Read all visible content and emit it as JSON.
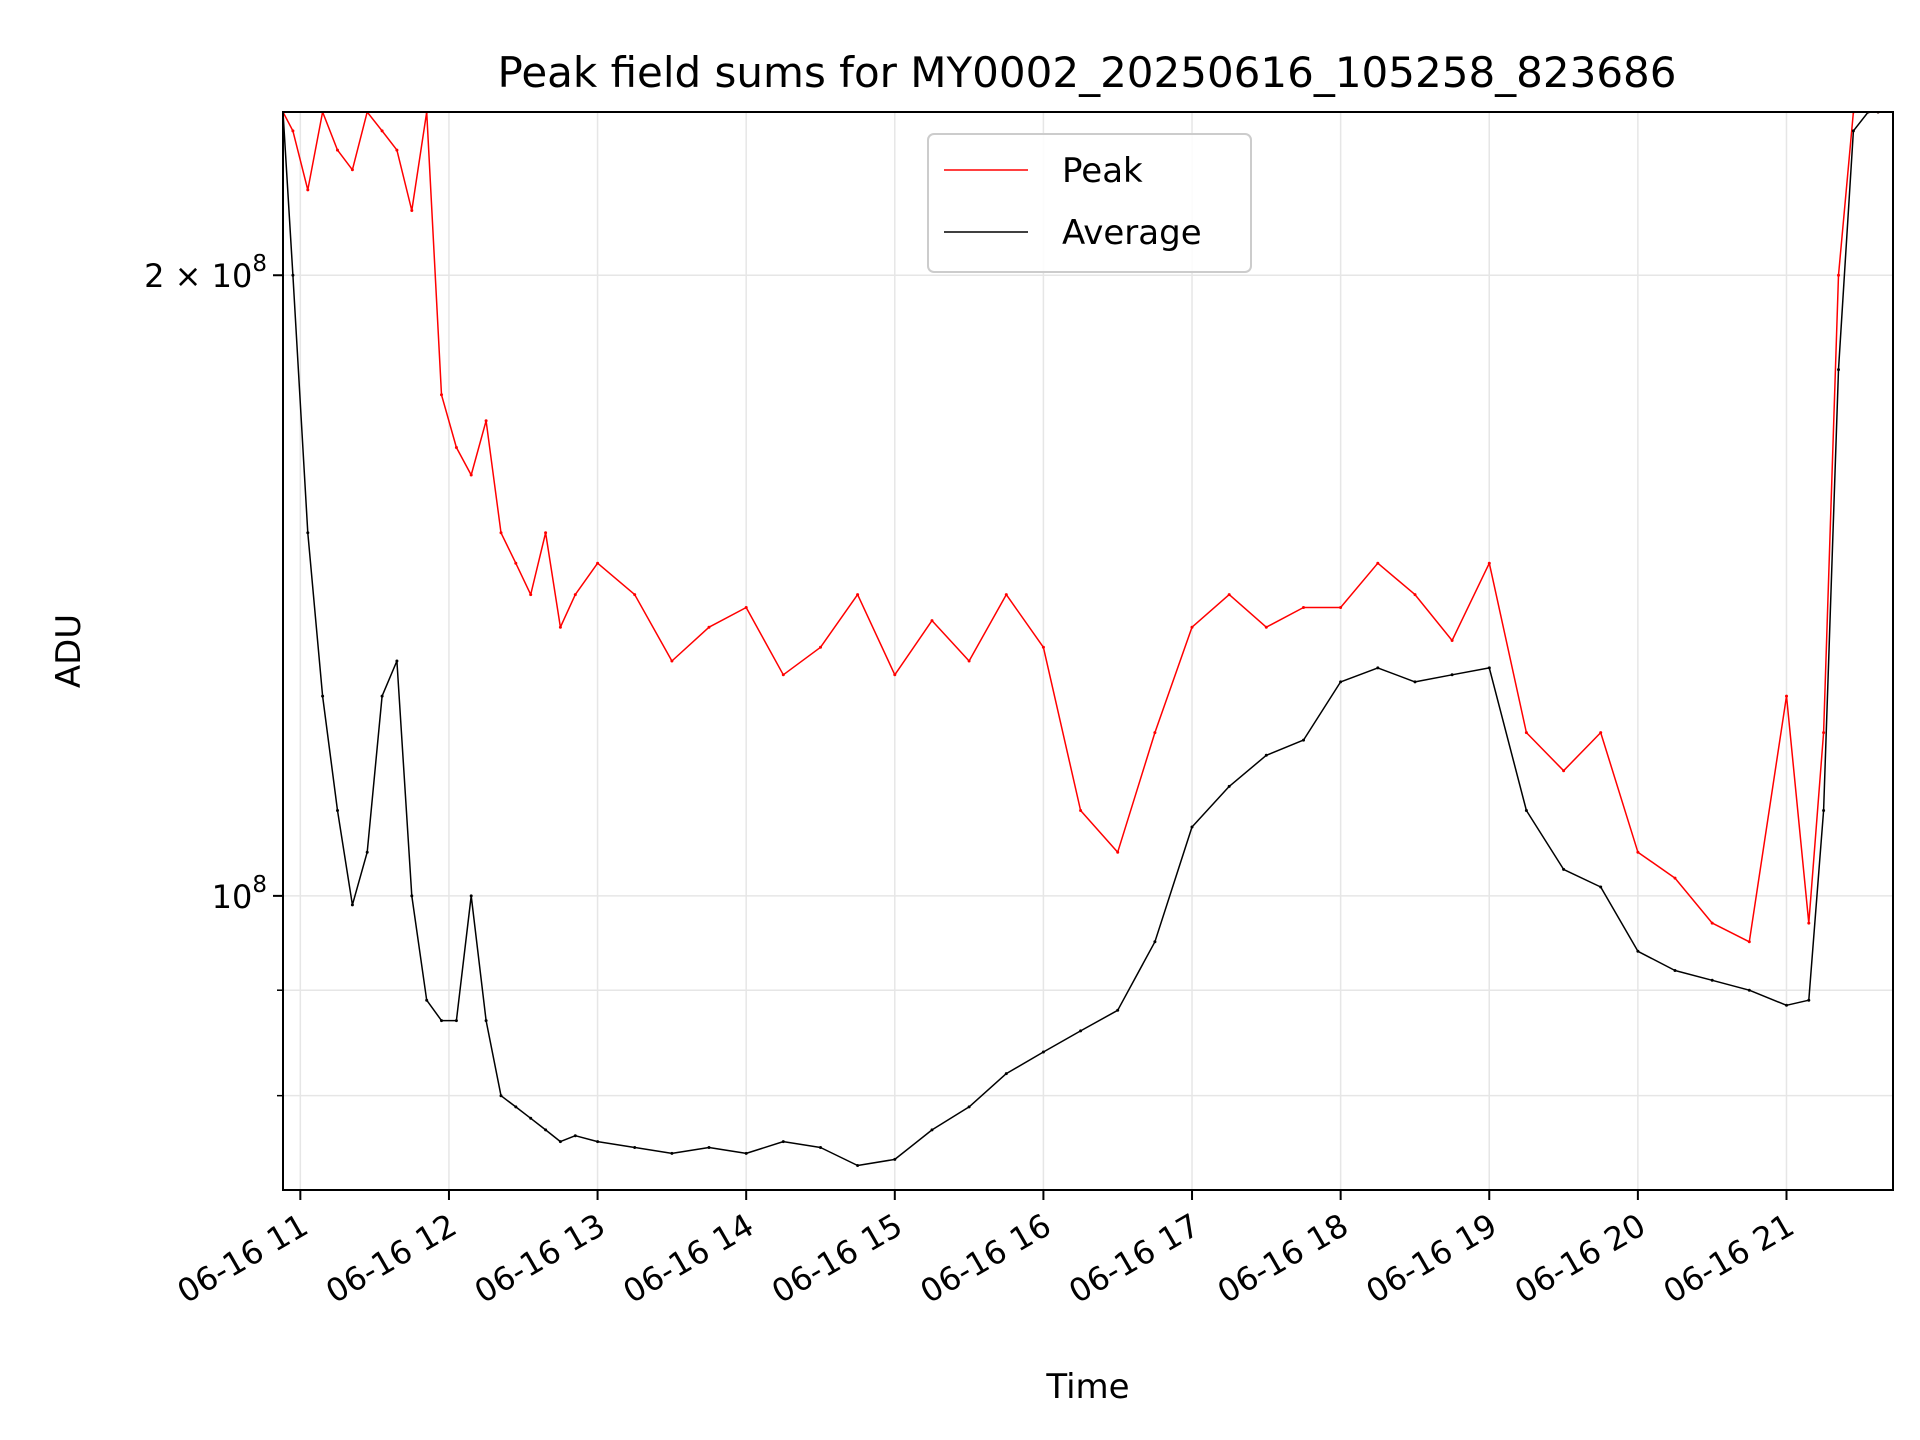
{
  "chart_data": {
    "type": "line",
    "title": "Peak field sums for MY0002_20250616_105258_823686",
    "xlabel": "Time",
    "ylabel": "ADU",
    "y_scale": "log",
    "grid": true,
    "legend_position": "top-center",
    "xlim": [
      "2025-06-16 10:53",
      "2025-06-16 21:43"
    ],
    "ylim": [
      72000000,
      240000000
    ],
    "x_ticks": [
      "2025-06-16 11:00",
      "2025-06-16 12:00",
      "2025-06-16 13:00",
      "2025-06-16 14:00",
      "2025-06-16 15:00",
      "2025-06-16 16:00",
      "2025-06-16 17:00",
      "2025-06-16 18:00",
      "2025-06-16 19:00",
      "2025-06-16 20:00",
      "2025-06-16 21:00"
    ],
    "x_tick_labels": [
      "06-16 11",
      "06-16 12",
      "06-16 13",
      "06-16 14",
      "06-16 15",
      "06-16 16",
      "06-16 17",
      "06-16 18",
      "06-16 19",
      "06-16 20",
      "06-16 21"
    ],
    "y_major_ticks": [
      100000000,
      200000000
    ],
    "y_major_tick_labels": [
      {
        "mantissa": "",
        "exponent": "8"
      },
      {
        "mantissa": "2",
        "exponent": "8"
      }
    ],
    "y_minor_ticks": [
      80000000,
      90000000
    ],
    "x": [
      "2025-06-16 10:53",
      "2025-06-16 10:57",
      "2025-06-16 11:03",
      "2025-06-16 11:09",
      "2025-06-16 11:15",
      "2025-06-16 11:21",
      "2025-06-16 11:27",
      "2025-06-16 11:33",
      "2025-06-16 11:39",
      "2025-06-16 11:45",
      "2025-06-16 11:51",
      "2025-06-16 11:57",
      "2025-06-16 12:03",
      "2025-06-16 12:09",
      "2025-06-16 12:15",
      "2025-06-16 12:21",
      "2025-06-16 12:27",
      "2025-06-16 12:33",
      "2025-06-16 12:39",
      "2025-06-16 12:45",
      "2025-06-16 12:51",
      "2025-06-16 13:00",
      "2025-06-16 13:15",
      "2025-06-16 13:30",
      "2025-06-16 13:45",
      "2025-06-16 14:00",
      "2025-06-16 14:15",
      "2025-06-16 14:30",
      "2025-06-16 14:45",
      "2025-06-16 15:00",
      "2025-06-16 15:15",
      "2025-06-16 15:30",
      "2025-06-16 15:45",
      "2025-06-16 16:00",
      "2025-06-16 16:15",
      "2025-06-16 16:30",
      "2025-06-16 16:45",
      "2025-06-16 17:00",
      "2025-06-16 17:15",
      "2025-06-16 17:30",
      "2025-06-16 17:45",
      "2025-06-16 18:00",
      "2025-06-16 18:15",
      "2025-06-16 18:30",
      "2025-06-16 18:45",
      "2025-06-16 19:00",
      "2025-06-16 19:15",
      "2025-06-16 19:30",
      "2025-06-16 19:45",
      "2025-06-16 20:00",
      "2025-06-16 20:15",
      "2025-06-16 20:30",
      "2025-06-16 20:45",
      "2025-06-16 21:00",
      "2025-06-16 21:09",
      "2025-06-16 21:15",
      "2025-06-16 21:21",
      "2025-06-16 21:27",
      "2025-06-16 21:33",
      "2025-06-16 21:37"
    ],
    "series": [
      {
        "name": "Peak",
        "color": "#ff0000",
        "values": [
          240000000,
          235000000,
          220000000,
          240000000,
          230000000,
          225000000,
          240000000,
          235000000,
          230000000,
          215000000,
          240000000,
          175000000,
          165000000,
          160000000,
          170000000,
          150000000,
          145000000,
          140000000,
          150000000,
          135000000,
          140000000,
          145000000,
          140000000,
          130000000,
          135000000,
          138000000,
          128000000,
          132000000,
          140000000,
          128000000,
          136000000,
          130000000,
          140000000,
          132000000,
          110000000,
          105000000,
          120000000,
          135000000,
          140000000,
          135000000,
          138000000,
          138000000,
          145000000,
          140000000,
          133000000,
          145000000,
          120000000,
          115000000,
          120000000,
          105000000,
          102000000,
          97000000,
          95000000,
          125000000,
          97000000,
          120000000,
          200000000,
          240000000,
          240000000,
          240000000
        ]
      },
      {
        "name": "Average",
        "color": "#000000",
        "values": [
          240000000,
          200000000,
          150000000,
          125000000,
          110000000,
          99000000,
          105000000,
          125000000,
          130000000,
          100000000,
          89000000,
          87000000,
          87000000,
          100000000,
          87000000,
          80000000,
          79000000,
          78000000,
          77000000,
          76000000,
          76500000,
          76000000,
          75500000,
          75000000,
          75500000,
          75000000,
          76000000,
          75500000,
          74000000,
          74500000,
          77000000,
          79000000,
          82000000,
          84000000,
          86000000,
          88000000,
          95000000,
          108000000,
          113000000,
          117000000,
          119000000,
          127000000,
          129000000,
          127000000,
          128000000,
          129000000,
          110000000,
          103000000,
          101000000,
          94000000,
          92000000,
          91000000,
          90000000,
          88500000,
          89000000,
          110000000,
          180000000,
          235000000,
          240000000,
          240000000
        ]
      }
    ]
  }
}
